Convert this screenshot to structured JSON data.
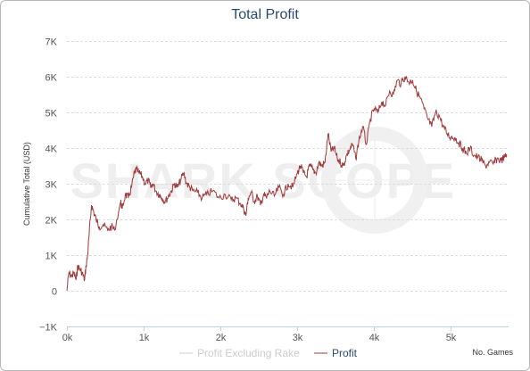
{
  "chart_data": {
    "type": "line",
    "title": "Total Profit",
    "xlabel": "No. Games",
    "ylabel": "Cumulative Total (USD)",
    "watermark": "SHARK SCOPE",
    "xlim": [
      0,
      5750
    ],
    "ylim": [
      -1000,
      7000
    ],
    "x_ticks": [
      0,
      1000,
      2000,
      3000,
      4000,
      5000
    ],
    "x_tick_labels": [
      "0k",
      "1k",
      "2k",
      "3k",
      "4k",
      "5k"
    ],
    "y_ticks": [
      -1000,
      0,
      1000,
      2000,
      3000,
      4000,
      5000,
      6000,
      7000
    ],
    "y_tick_labels": [
      "−1K",
      "0",
      "1K",
      "2K",
      "3K",
      "4K",
      "5K",
      "6K",
      "7K"
    ],
    "grid": true,
    "legend_position": "bottom-center",
    "series": [
      {
        "name": "Profit Excluding Rake",
        "color": "#cccccc",
        "visible": false,
        "x": [],
        "y": []
      },
      {
        "name": "Profit",
        "color": "#a0393a",
        "visible": true,
        "x": [
          0,
          25,
          60,
          90,
          120,
          140,
          170,
          200,
          230,
          250,
          270,
          290,
          320,
          350,
          380,
          420,
          470,
          530,
          580,
          620,
          700,
          720,
          760,
          800,
          840,
          880,
          900,
          940,
          980,
          1020,
          1060,
          1090,
          1120,
          1160,
          1200,
          1240,
          1280,
          1320,
          1360,
          1400,
          1440,
          1480,
          1520,
          1560,
          1600,
          1640,
          1700,
          1760,
          1820,
          1900,
          1980,
          2060,
          2140,
          2200,
          2260,
          2300,
          2330,
          2360,
          2400,
          2440,
          2480,
          2520,
          2560,
          2600,
          2640,
          2700,
          2760,
          2820,
          2880,
          2940,
          3000,
          3040,
          3080,
          3120,
          3160,
          3200,
          3240,
          3280,
          3320,
          3360,
          3400,
          3440,
          3480,
          3520,
          3560,
          3600,
          3640,
          3680,
          3720,
          3760,
          3800,
          3850,
          3900,
          3950,
          4000,
          4050,
          4100,
          4150,
          4200,
          4250,
          4300,
          4350,
          4400,
          4450,
          4500,
          4550,
          4600,
          4650,
          4700,
          4750,
          4800,
          4850,
          4900,
          4950,
          5000,
          5050,
          5100,
          5150,
          5200,
          5250,
          5300,
          5350,
          5400,
          5450,
          5500,
          5550,
          5600,
          5650,
          5700,
          5730
        ],
        "y": [
          0,
          500,
          400,
          500,
          300,
          700,
          600,
          500,
          300,
          700,
          1000,
          1600,
          2400,
          2200,
          2000,
          1800,
          1850,
          1700,
          1800,
          1700,
          2500,
          2300,
          2700,
          2600,
          2900,
          3300,
          3400,
          3300,
          3200,
          3000,
          3100,
          2900,
          3000,
          2800,
          2700,
          2600,
          2500,
          2650,
          2800,
          3000,
          2900,
          3100,
          3300,
          3000,
          2900,
          2800,
          2750,
          2600,
          2700,
          2800,
          2600,
          2700,
          2550,
          2600,
          2450,
          2300,
          2100,
          2600,
          2750,
          2500,
          2650,
          2400,
          2700,
          2600,
          2800,
          2650,
          2900,
          2700,
          3000,
          2900,
          3300,
          3500,
          3300,
          3200,
          3500,
          3400,
          3300,
          3600,
          3500,
          3600,
          4400,
          3900,
          4000,
          3700,
          3600,
          3500,
          3800,
          3950,
          4100,
          3700,
          4200,
          4600,
          4100,
          4800,
          5100,
          5000,
          5300,
          5200,
          5600,
          5500,
          5900,
          5800,
          6000,
          5850,
          5900,
          5600,
          5400,
          5100,
          4800,
          4600,
          5000,
          4900,
          4600,
          4400,
          4300,
          4300,
          4150,
          4000,
          3850,
          4000,
          3800,
          3750,
          3650,
          3500,
          3600,
          3550,
          3700,
          3650,
          3750,
          3800
        ]
      }
    ]
  }
}
